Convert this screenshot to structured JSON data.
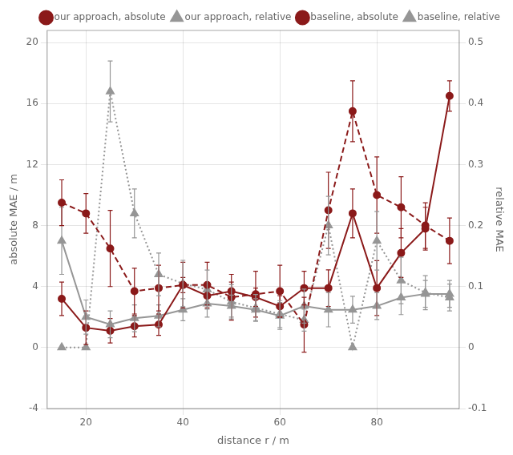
{
  "chart_data": {
    "type": "line",
    "xlabel": "distance r / m",
    "ylabel": "absolute MAE / m",
    "y2label": "relative MAE",
    "x": [
      15,
      20,
      25,
      30,
      35,
      40,
      45,
      50,
      55,
      60,
      65,
      70,
      75,
      80,
      85,
      90,
      95
    ],
    "series": [
      {
        "name": "our approach, absolute",
        "color": "#8B1A1A",
        "marker": "circle",
        "line_style": "solid",
        "values": [
          3.2,
          1.3,
          1.1,
          1.4,
          1.5,
          4.1,
          3.4,
          3.7,
          3.3,
          2.7,
          3.9,
          3.9,
          8.8,
          3.9,
          6.2,
          7.8,
          16.5
        ],
        "errors": [
          1.1,
          1.1,
          0.8,
          0.7,
          0.7,
          0.5,
          0.6,
          0.6,
          0.6,
          0.7,
          1.1,
          1.2,
          1.6,
          1.8,
          1.6,
          1.4,
          1.0
        ]
      },
      {
        "name": "our approach, relative",
        "color": "#969696",
        "marker": "triangle",
        "line_style": "solid",
        "axis": "y2",
        "values": [
          0.175,
          0.05,
          0.038,
          0.048,
          0.052,
          0.062,
          0.072,
          0.068,
          0.062,
          0.052,
          0.068,
          0.062,
          0.062,
          0.068,
          0.082,
          0.088,
          0.088
        ],
        "errors": [
          0.055,
          0.028,
          0.022,
          0.022,
          0.018,
          0.018,
          0.022,
          0.018,
          0.018,
          0.022,
          0.028,
          0.028,
          0.022,
          0.022,
          0.028,
          0.022,
          0.022
        ]
      },
      {
        "name": "baseline, absolute",
        "color": "#8B1A1A",
        "marker": "circle",
        "line_style": "dashed",
        "values": [
          9.5,
          8.8,
          6.5,
          3.7,
          3.9,
          4.1,
          4.1,
          3.3,
          3.5,
          3.7,
          1.5,
          9.0,
          15.5,
          10.0,
          9.2,
          8.0,
          7.0
        ],
        "errors": [
          1.5,
          1.3,
          2.5,
          1.5,
          1.5,
          1.5,
          1.5,
          1.5,
          1.5,
          1.7,
          1.8,
          2.5,
          2.0,
          2.5,
          2.0,
          1.5,
          1.5
        ]
      },
      {
        "name": "baseline, relative",
        "color": "#969696",
        "marker": "triangle",
        "line_style": "dotted",
        "axis": "y2",
        "values": [
          0.0,
          0.0,
          0.42,
          0.22,
          0.12,
          0.105,
          0.095,
          0.075,
          0.065,
          0.055,
          0.045,
          0.2,
          0.0,
          0.175,
          0.11,
          0.09,
          0.082
        ],
        "errors": [
          0.0,
          0.0,
          0.05,
          0.04,
          0.035,
          0.038,
          0.032,
          0.028,
          0.022,
          0.022,
          0.018,
          0.048,
          0.0,
          0.048,
          0.038,
          0.028,
          0.022
        ]
      }
    ],
    "xlim": [
      12,
      97
    ],
    "xticks": [
      20,
      40,
      60,
      80
    ],
    "ylim": [
      -4,
      20.8
    ],
    "yticks": [
      -4,
      0,
      4,
      8,
      12,
      16,
      20
    ],
    "y2lim": [
      -0.1,
      0.52
    ],
    "y2ticks": [
      -0.1,
      0,
      0.1,
      0.2,
      0.3,
      0.4,
      0.5
    ],
    "grid": true,
    "legend": "upper right"
  }
}
